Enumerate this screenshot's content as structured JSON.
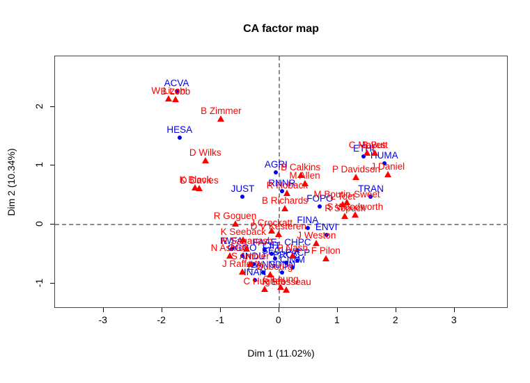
{
  "title": "CA factor map",
  "axes": {
    "xlabel": "Dim 1 (11.02%)",
    "ylabel": "Dim 2 (10.34%)",
    "x_ticks": [
      -3,
      -2,
      -1,
      0,
      1,
      2,
      3
    ],
    "y_ticks": [
      -1,
      0,
      1,
      2
    ],
    "xlim": [
      -3.83,
      3.92
    ],
    "ylim": [
      -1.43,
      2.86
    ],
    "zero_lines": "dashed"
  },
  "colors": {
    "committee": "#0000ee",
    "mp": "#ff0000",
    "dashed_line": "#8a8a8a",
    "box": "#444444",
    "title": "#000000"
  },
  "chart_data": {
    "type": "scatter",
    "title": "CA factor map",
    "xlabel": "Dim 1 (11.02%)",
    "ylabel": "Dim 2 (10.34%)",
    "series": [
      {
        "name": "committees",
        "marker": "dot",
        "color": "#0000ee",
        "points": [
          {
            "label": "ACVA",
            "x": -1.74,
            "y": 2.26
          },
          {
            "label": "HESA",
            "x": -1.69,
            "y": 1.47
          },
          {
            "label": "AGRI",
            "x": -0.04,
            "y": 0.88
          },
          {
            "label": "JUST",
            "x": -0.61,
            "y": 0.46
          },
          {
            "label": "RNNR",
            "x": 0.06,
            "y": 0.56
          },
          {
            "label": "ETHI",
            "x": 1.46,
            "y": 1.15
          },
          {
            "label": "HUMA",
            "x": 1.81,
            "y": 1.03
          },
          {
            "label": "TRAN",
            "x": 1.58,
            "y": 0.46
          },
          {
            "label": "FOPO",
            "x": 0.71,
            "y": 0.3
          },
          {
            "label": "FINA",
            "x": 0.5,
            "y": -0.07
          },
          {
            "label": "ENVI",
            "x": 0.82,
            "y": -0.19
          },
          {
            "label": "IWFA",
            "x": -0.8,
            "y": -0.43
          },
          {
            "label": "FAAE",
            "x": -0.23,
            "y": -0.45
          },
          {
            "label": "CHPC",
            "x": 0.33,
            "y": -0.45
          },
          {
            "label": "CIIT",
            "x": -0.12,
            "y": -0.51
          },
          {
            "label": "SECU",
            "x": -0.06,
            "y": -0.59
          },
          {
            "label": "OGGO",
            "x": -0.62,
            "y": -0.54
          },
          {
            "label": "INDU",
            "x": -0.42,
            "y": -0.69
          },
          {
            "label": "PROC",
            "x": 0.14,
            "y": -0.66
          },
          {
            "label": "PACP",
            "x": 0.33,
            "y": -0.63
          },
          {
            "label": "CIMM",
            "x": 0.24,
            "y": -0.75
          },
          {
            "label": "LANG",
            "x": -0.26,
            "y": -0.83
          },
          {
            "label": "NDDN",
            "x": 0.06,
            "y": -0.83
          },
          {
            "label": "INAN",
            "x": -0.4,
            "y": -0.96
          }
        ]
      },
      {
        "name": "members",
        "marker": "triangle",
        "color": "#ff0000",
        "points": [
          {
            "label": "W Lizon",
            "x": -1.88,
            "y": 2.13
          },
          {
            "label": "B Lobb",
            "x": -1.76,
            "y": 2.11
          },
          {
            "label": "B Zimmer",
            "x": -0.98,
            "y": 1.79
          },
          {
            "label": "D Wilks",
            "x": -1.25,
            "y": 1.07
          },
          {
            "label": "K Block",
            "x": -1.42,
            "y": 0.62
          },
          {
            "label": "D Davies",
            "x": -1.35,
            "y": 0.6
          },
          {
            "label": "B Calkins",
            "x": 0.38,
            "y": 0.83
          },
          {
            "label": "M Allen",
            "x": 0.45,
            "y": 0.69
          },
          {
            "label": "R Hoback",
            "x": 0.15,
            "y": 0.52
          },
          {
            "label": "B Richards",
            "x": 0.11,
            "y": 0.26
          },
          {
            "label": "P Davidson",
            "x": 1.33,
            "y": 0.79
          },
          {
            "label": "C Mayes",
            "x": 1.52,
            "y": 1.2
          },
          {
            "label": "B Butt",
            "x": 1.65,
            "y": 1.2
          },
          {
            "label": "J Daniel",
            "x": 1.87,
            "y": 0.84
          },
          {
            "label": "M Boutin-Sweet",
            "x": 1.17,
            "y": 0.37
          },
          {
            "label": "L Toet",
            "x": 1.1,
            "y": 0.33
          },
          {
            "label": "S Woodworth",
            "x": 1.31,
            "y": 0.15
          },
          {
            "label": "R Sopuck",
            "x": 1.14,
            "y": 0.13
          },
          {
            "label": "J Weston",
            "x": 0.65,
            "y": -0.33
          },
          {
            "label": "R Goguen",
            "x": -0.74,
            "y": 0.0
          },
          {
            "label": "J Crockatt",
            "x": -0.12,
            "y": -0.12
          },
          {
            "label": "K Seeback",
            "x": -0.6,
            "y": -0.27
          },
          {
            "label": "D V Kesteren",
            "x": 0.0,
            "y": -0.18
          },
          {
            "label": "R Saganash",
            "x": -0.54,
            "y": -0.43
          },
          {
            "label": "N Ashton",
            "x": -0.83,
            "y": -0.54
          },
          {
            "label": "P Nash",
            "x": 0.24,
            "y": -0.54
          },
          {
            "label": "F Pilon",
            "x": 0.81,
            "y": -0.59
          },
          {
            "label": "S Ambler",
            "x": -0.48,
            "y": -0.69
          },
          {
            "label": "J Rafferty",
            "x": -0.62,
            "y": -0.82
          },
          {
            "label": "E Dubourg",
            "x": -0.14,
            "y": -0.86
          },
          {
            "label": "C Hughes",
            "x": -0.24,
            "y": -1.11
          },
          {
            "label": "C Leung",
            "x": 0.04,
            "y": -1.08
          },
          {
            "label": "R Brosseau",
            "x": 0.14,
            "y": -1.12
          }
        ]
      }
    ]
  }
}
